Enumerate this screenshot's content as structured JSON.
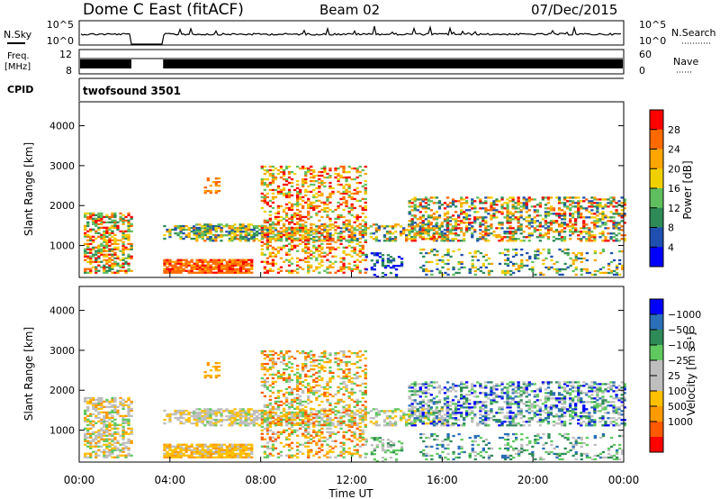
{
  "header": {
    "title": "Dome C East (fitACF)",
    "beam": "Beam 02",
    "date": "07/Dec/2015"
  },
  "nsky_panel": {
    "left_label": "N.Sky",
    "left_ticks": [
      "10^5",
      "10^0"
    ],
    "right_label": "N.Search",
    "right_ticks": [
      "10^5",
      "10^0"
    ]
  },
  "freq_panel": {
    "left_label_1": "Freq.",
    "left_label_2": "[MHz]",
    "left_ticks": [
      "12",
      "8"
    ],
    "right_label": "Nave",
    "right_ticks": [
      "60",
      "0"
    ]
  },
  "cpid_panel": {
    "label": "CPID",
    "value": "twofsound 3501"
  },
  "colors": {
    "power_scale": [
      "#0000ff",
      "#1f4fb0",
      "#2e8b57",
      "#5fbf5f",
      "#f0d000",
      "#ffa500",
      "#ff6a00",
      "#ff0000"
    ],
    "velocity_scale": [
      "#ff0000",
      "#ff5a00",
      "#ff9a00",
      "#ffc000",
      "#bebebe",
      "#bebebe",
      "#5fc95f",
      "#2e8b57",
      "#2a6fb8",
      "#0000ff"
    ]
  },
  "chart_data": [
    {
      "type": "heatmap",
      "name": "power",
      "ylabel": "Slant Range [km]",
      "yticks": [
        "1000",
        "2000",
        "3000",
        "4000"
      ],
      "ylim": [
        200,
        4600
      ],
      "xlim": [
        0,
        24
      ],
      "colorbar_label": "Power [dB]",
      "colorbar_ticks": [
        "4",
        "8",
        "12",
        "16",
        "20",
        "24",
        "28"
      ],
      "data_gaps_hours": [
        [
          2.3,
          3.7
        ]
      ],
      "echo_regions": [
        {
          "t": [
            0.2,
            2.3
          ],
          "r": [
            300,
            1800
          ],
          "level": "green-orange"
        },
        {
          "t": [
            3.7,
            7.5
          ],
          "r": [
            300,
            650
          ],
          "level": "red"
        },
        {
          "t": [
            5.0,
            16.0
          ],
          "r": [
            1100,
            1600
          ],
          "level": "green"
        },
        {
          "t": [
            8.0,
            12.5
          ],
          "r": [
            1500,
            3000
          ],
          "level": "orange"
        },
        {
          "t": [
            15.0,
            24.0
          ],
          "r": [
            700,
            2200
          ],
          "level": "mixed"
        }
      ]
    },
    {
      "type": "heatmap",
      "name": "velocity",
      "ylabel": "Slant Range [km]",
      "yticks": [
        "1000",
        "2000",
        "3000",
        "4000"
      ],
      "xlabel": "Time UT",
      "xticks": [
        "00:00",
        "04:00",
        "08:00",
        "12:00",
        "16:00",
        "20:00",
        "00:00"
      ],
      "ylim": [
        200,
        4600
      ],
      "xlim": [
        0,
        24
      ],
      "colorbar_label": "Velocity [m s⁻¹]",
      "colorbar_ticks": [
        "1000",
        "500",
        "100",
        "25",
        "−25",
        "−100",
        "−500",
        "−1000"
      ],
      "data_gaps_hours": [
        [
          2.3,
          3.7
        ]
      ]
    }
  ]
}
